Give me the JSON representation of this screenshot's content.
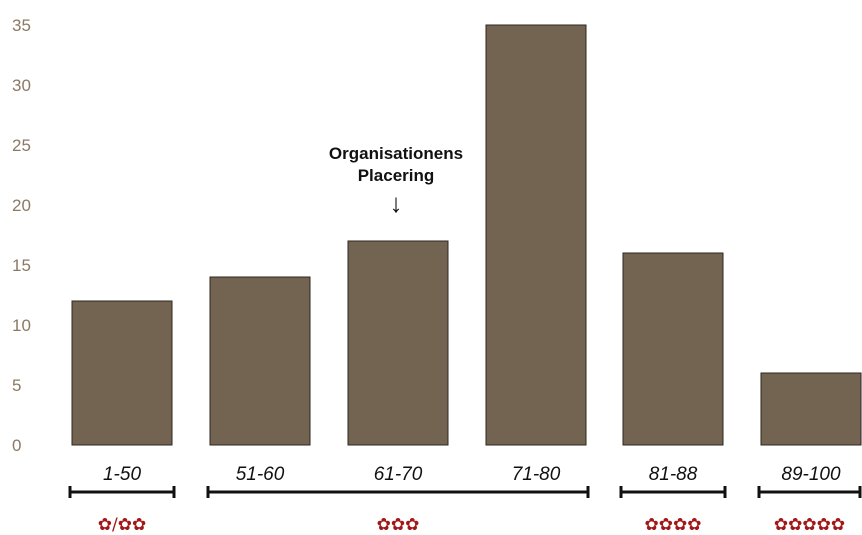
{
  "chart_data": {
    "type": "bar",
    "categories": [
      "1-50",
      "51-60",
      "61-70",
      "71-80",
      "81-88",
      "89-100"
    ],
    "values": [
      12,
      14,
      17,
      35,
      16,
      6
    ],
    "ylim": [
      0,
      35
    ],
    "yticks": [
      0,
      5,
      10,
      15,
      20,
      25,
      30,
      35
    ],
    "grid": false,
    "annotation": {
      "lines": [
        "Organisationens",
        "Placering"
      ],
      "arrow": "↓",
      "category": "61-70"
    },
    "groups": [
      {
        "label": "✿/✿✿",
        "categories": [
          "1-50"
        ]
      },
      {
        "label": "✿✿✿",
        "categories": [
          "51-60",
          "61-70",
          "71-80"
        ]
      },
      {
        "label": "✿✿✿✿",
        "categories": [
          "81-88"
        ]
      },
      {
        "label": "✿✿✿✿✿",
        "categories": [
          "89-100"
        ]
      }
    ]
  },
  "colors": {
    "bar_fill": "#736451",
    "bar_stroke": "#2b2620",
    "tick_label": "#8a7a63",
    "stars": "#a01818",
    "bracket": "#111111"
  }
}
